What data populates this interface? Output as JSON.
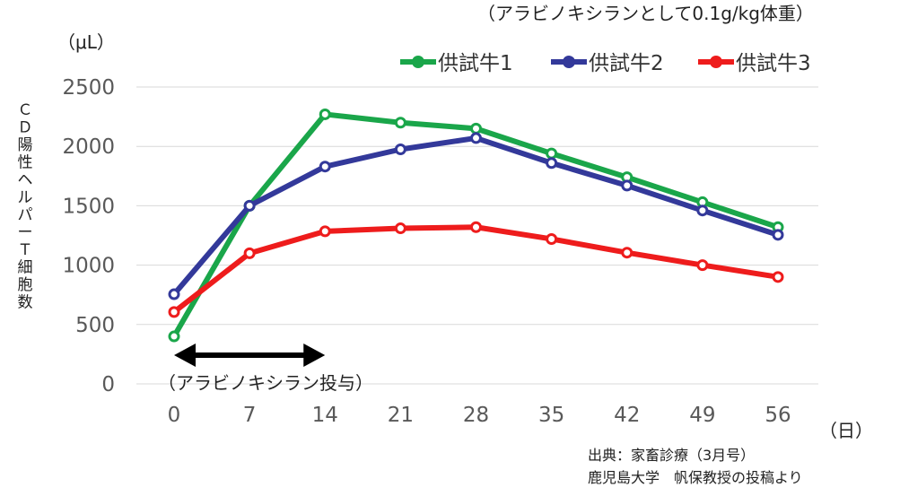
{
  "chart_data": {
    "type": "line",
    "subtitle": "（アラビノキシランとして0.1g/kg体重）",
    "ylabel": "ＣＤ陽性ヘルパーＴ細胞数",
    "y_unit": "（μL）",
    "x_unit": "（日）",
    "x": [
      0,
      7,
      14,
      21,
      28,
      35,
      42,
      49,
      56
    ],
    "ylim": [
      0,
      2500
    ],
    "yticks": [
      0,
      500,
      1000,
      1500,
      2000,
      2500
    ],
    "grid": true,
    "legend_position": "top-right",
    "series": [
      {
        "name": "供試牛1",
        "color": "#1aa64a",
        "values": [
          400,
          1500,
          2270,
          2200,
          2150,
          1940,
          1740,
          1530,
          1320
        ]
      },
      {
        "name": "供試牛2",
        "color": "#33399a",
        "values": [
          755,
          1500,
          1830,
          1975,
          2070,
          1860,
          1670,
          1460,
          1255
        ]
      },
      {
        "name": "供試牛3",
        "color": "#ee1c1c",
        "values": [
          605,
          1100,
          1285,
          1310,
          1320,
          1220,
          1105,
          1000,
          900
        ]
      }
    ],
    "annotation": {
      "text": "（アラビノキシラン投与）",
      "x_start": 0,
      "x_end": 14
    }
  },
  "source": {
    "line1": "出典：家畜診療（3月号）",
    "line2": "鹿児島大学　帆保教授の投稿より"
  }
}
